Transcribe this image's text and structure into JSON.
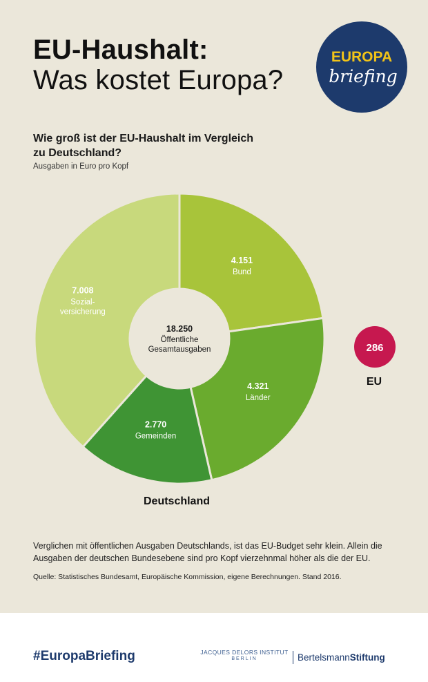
{
  "header": {
    "title_line1": "EU-Haushalt:",
    "title_line2": "Was kostet Europa?"
  },
  "logo": {
    "line1": "EUROPA",
    "line2": "briefing",
    "bg_color": "#1d3a6c",
    "accent_color": "#f2c318"
  },
  "question": "Wie groß ist der EU-Haushalt im Vergleich zu Deutschland?",
  "subtitle": "Ausgaben in Euro pro Kopf",
  "chart_data": [
    {
      "type": "pie",
      "label": "Deutschland",
      "total_value": "18.250",
      "total_label": [
        "Öffentliche",
        "Gesamtausgaben"
      ],
      "slices": [
        {
          "name": "Bund",
          "value": 4151,
          "display": "4.151",
          "label_lines": [
            "Bund"
          ],
          "color": "#a8c43a"
        },
        {
          "name": "Länder",
          "value": 4321,
          "display": "4.321",
          "label_lines": [
            "Länder"
          ],
          "color": "#6aab2e"
        },
        {
          "name": "Gemeinden",
          "value": 2770,
          "display": "2.770",
          "label_lines": [
            "Gemeinden"
          ],
          "color": "#3f9434"
        },
        {
          "name": "Sozialversicherung",
          "value": 7008,
          "display": "7.008",
          "label_lines": [
            "Sozial-",
            "versicherung"
          ],
          "color": "#c8d97c"
        }
      ]
    },
    {
      "type": "bubble",
      "label": "EU",
      "value": 286,
      "display": "286",
      "color": "#c6184f"
    }
  ],
  "note": "Verglichen mit öffentlichen Ausgaben Deutschlands, ist das EU-Budget sehr klein. Allein die Ausgaben der deutschen Bundesebene sind pro Kopf vierzehnmal höher als die der EU.",
  "source": "Quelle: Statistisches Bundesamt, Europäische Kommission, eigene Berechnungen. Stand 2016.",
  "footer": {
    "hashtag": "#EuropaBriefing",
    "jdi_line1": "JACQUES DELORS INSTITUT",
    "jdi_line2": "BERLIN",
    "bs_part1": "Bertelsmann",
    "bs_part2": "Stiftung"
  }
}
